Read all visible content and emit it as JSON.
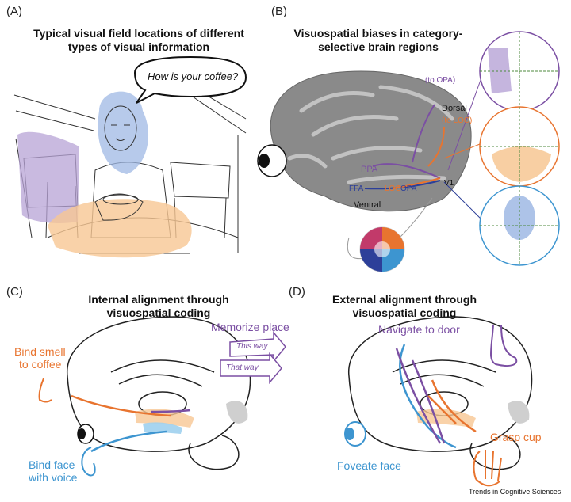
{
  "panel_a": {
    "label": "(A)",
    "title_line1": "Typical visual field locations of different",
    "title_line2": "types of visual information",
    "speech": "How is your coffee?"
  },
  "panel_b": {
    "label": "(B)",
    "title_line1": "Visuospatial biases in category-",
    "title_line2": "selective brain regions",
    "to_opa": "(to OPA)",
    "dorsal": "Dorsal",
    "to_loc": "(to LOC)",
    "ppa": "PPA",
    "ffa": "FFA",
    "opa": "OPA",
    "v1": "V1",
    "ventral": "Ventral",
    "loc_short": "LOC"
  },
  "panel_c": {
    "label": "(C)",
    "title_line1": "Internal alignment through",
    "title_line2": "visuospatial coding",
    "memorize": "Memorize place",
    "this_way": "This way",
    "that_way": "That way",
    "bind_smell_1": "Bind smell",
    "bind_smell_2": "to coffee",
    "bind_face_1": "Bind face",
    "bind_face_2": "with voice"
  },
  "panel_d": {
    "label": "(D)",
    "title_line1": "External alignment through",
    "title_line2": "visuospatial coding",
    "navigate": "Navigate to door",
    "grasp": "Grasp cup",
    "foveate": "Foveate face"
  },
  "footer": {
    "credit": "Trends in Cognitive Sciences"
  },
  "colors": {
    "purple": "#7b4fa3",
    "orange": "#e8742f",
    "blue": "#3d95d0",
    "navy": "#2d3f99",
    "purple_fill": "#b7a3d6",
    "orange_fill": "#f7c793",
    "blue_fill": "#9fb8e4"
  }
}
